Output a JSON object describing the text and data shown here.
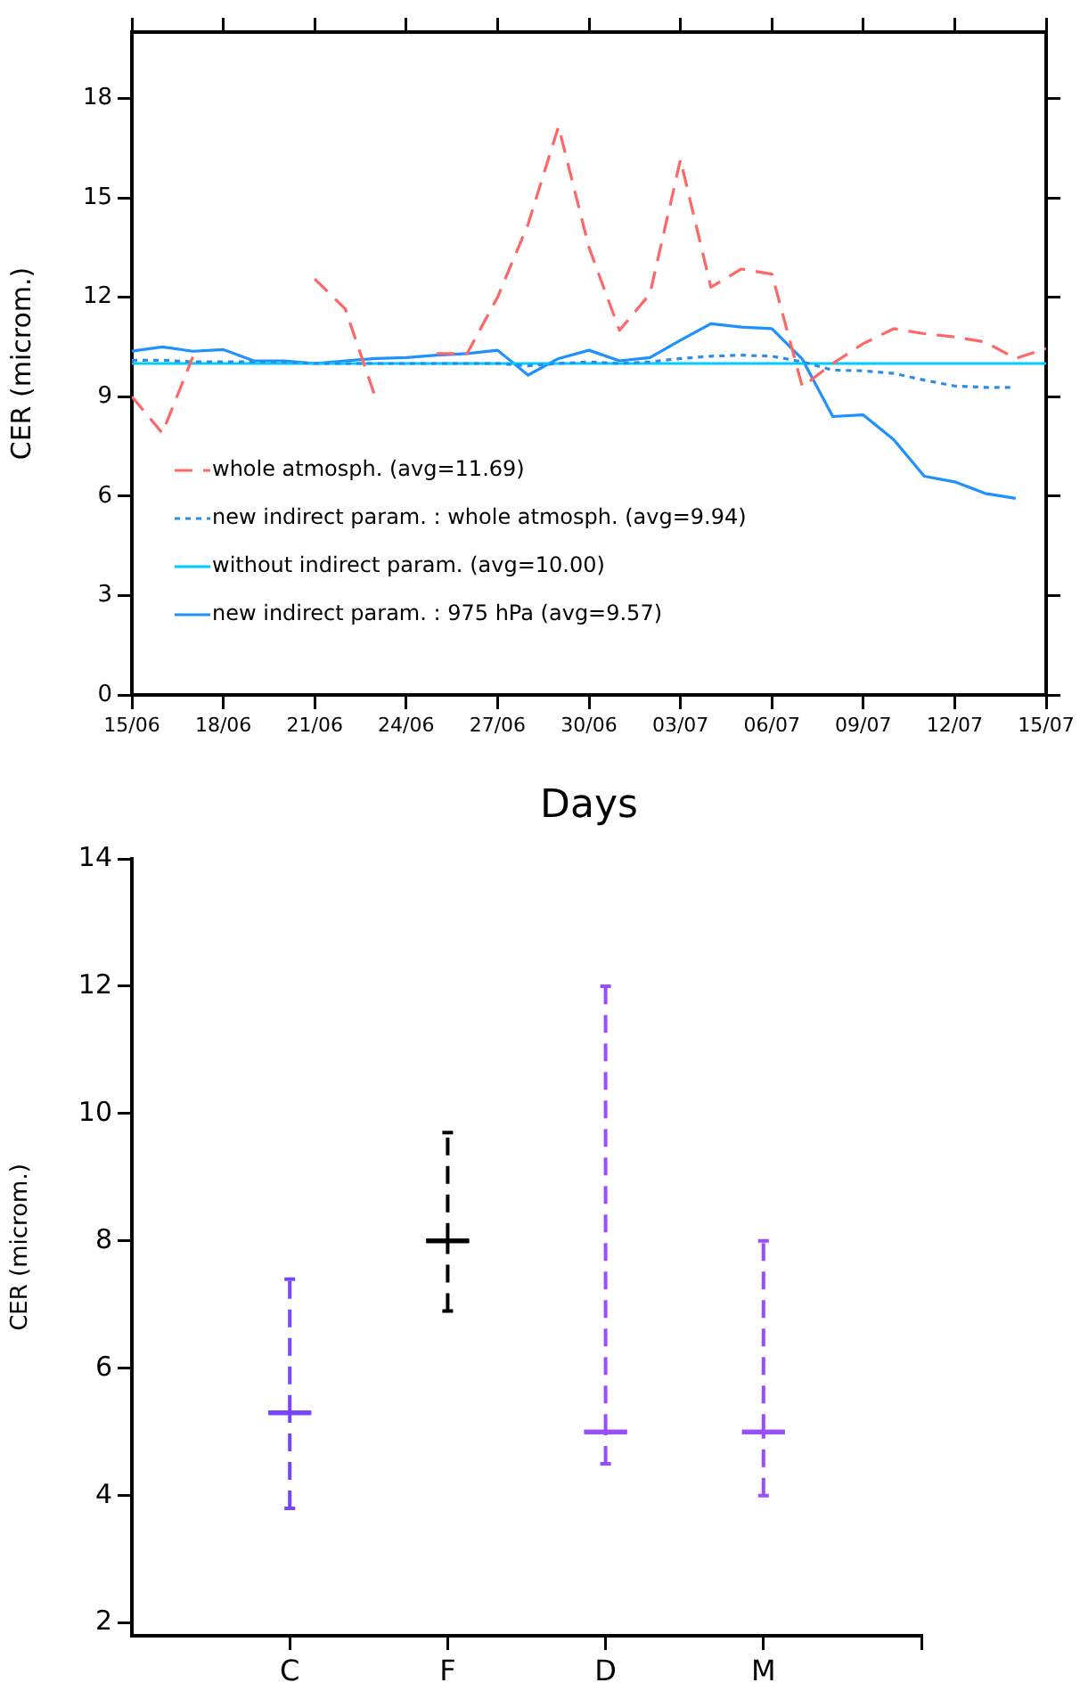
{
  "chart_data": [
    {
      "type": "line",
      "xlabel": "Days",
      "ylabel": "CER (microm.)",
      "x": [
        "--06-15",
        "--06-16",
        "--06-17",
        "--06-18",
        "--06-19",
        "--06-20",
        "--06-21",
        "--06-22",
        "--06-23",
        "--06-24",
        "--06-25",
        "--06-26",
        "--06-27",
        "--06-28",
        "--06-29",
        "--06-30",
        "--07-01",
        "--07-02",
        "--07-03",
        "--07-04",
        "--07-05",
        "--07-06",
        "--07-07",
        "--07-08",
        "--07-09",
        "--07-10",
        "--07-11",
        "--07-12",
        "--07-13",
        "--07-14",
        "--07-15"
      ],
      "xlim": [
        "--06-15",
        "--07-15"
      ],
      "xticks": [
        {
          "value": "--06-15",
          "label": "15/06"
        },
        {
          "value": "--06-18",
          "label": "18/06"
        },
        {
          "value": "--06-21",
          "label": "21/06"
        },
        {
          "value": "--06-24",
          "label": "24/06"
        },
        {
          "value": "--06-27",
          "label": "27/06"
        },
        {
          "value": "--06-30",
          "label": "30/06"
        },
        {
          "value": "--07-03",
          "label": "03/07"
        },
        {
          "value": "--07-06",
          "label": "06/07"
        },
        {
          "value": "--07-09",
          "label": "09/07"
        },
        {
          "value": "--07-12",
          "label": "12/07"
        },
        {
          "value": "--07-15",
          "label": "15/07"
        }
      ],
      "ylim": [
        0,
        20
      ],
      "yticks": [
        0,
        3,
        6,
        9,
        12,
        15,
        18
      ],
      "grid": false,
      "legend": "bottom left",
      "series": [
        {
          "name": "whole atmosph. (avg=11.69)",
          "color": "#ff6666",
          "line_style": "dashed",
          "values": [
            9.0,
            7.9,
            10.2,
            null,
            null,
            null,
            12.55,
            11.65,
            8.95,
            null,
            10.3,
            10.3,
            12.0,
            14.2,
            17.15,
            13.5,
            11.0,
            12.1,
            16.15,
            12.3,
            12.85,
            12.7,
            9.3,
            10.0,
            10.6,
            11.05,
            10.9,
            10.8,
            10.65,
            10.15,
            10.45
          ]
        },
        {
          "name": "new indirect param. : whole atmosph. (avg=9.94)",
          "color": "#2b8de8",
          "line_style": "dotted",
          "values": [
            10.1,
            10.1,
            10.05,
            10.05,
            10.05,
            10.05,
            10.0,
            10.0,
            10.0,
            10.0,
            10.0,
            10.0,
            10.0,
            9.93,
            10.0,
            10.05,
            10.0,
            10.05,
            10.15,
            10.22,
            10.25,
            10.22,
            10.05,
            9.8,
            9.78,
            9.7,
            9.5,
            9.32,
            9.28,
            9.28,
            null
          ]
        },
        {
          "name": "without indirect param. (avg=10.00)",
          "color": "#00ccff",
          "line_style": "solid",
          "values": [
            10,
            10,
            10,
            10,
            10,
            10,
            10,
            10,
            10,
            10,
            10,
            10,
            10,
            10,
            10,
            10,
            10,
            10,
            10,
            10,
            10,
            10,
            10,
            10,
            10,
            10,
            10,
            10,
            10,
            10,
            10
          ]
        },
        {
          "name": "new indirect param. : 975 hPa (avg=9.57)",
          "color": "#1e90ff",
          "line_style": "solid",
          "values": [
            10.37,
            10.5,
            10.37,
            10.42,
            10.08,
            10.08,
            10.0,
            10.08,
            10.15,
            10.18,
            10.25,
            10.3,
            10.4,
            9.65,
            10.15,
            10.4,
            10.08,
            10.18,
            10.7,
            11.2,
            11.1,
            11.05,
            10.13,
            8.4,
            8.45,
            7.7,
            6.6,
            6.43,
            6.08,
            5.93,
            null
          ]
        }
      ]
    },
    {
      "type": "box",
      "ylabel": "CER (microm.)",
      "categories": [
        "C",
        "F",
        "D",
        "M"
      ],
      "ylim": [
        1.8,
        14
      ],
      "yticks": [
        2,
        4,
        6,
        8,
        10,
        12,
        14
      ],
      "grid": false,
      "line_style": "dashed",
      "boxes": [
        {
          "low": 3.8,
          "q1": 5.3,
          "median": 5.3,
          "q3": 5.3,
          "high": 7.4
        },
        {
          "low": 6.9,
          "q1": 8.0,
          "median": 8.0,
          "q3": 8.0,
          "high": 9.7
        },
        {
          "low": 4.5,
          "q1": 5.0,
          "median": 5.0,
          "q3": 5.0,
          "high": 12
        },
        {
          "low": 4.0,
          "q1": 5.0,
          "median": 5.0,
          "q3": 5.0,
          "high": 8.0
        }
      ],
      "colors": [
        "#7744ff",
        "#000000",
        "#9a4dff",
        "#9a4dff"
      ]
    }
  ]
}
